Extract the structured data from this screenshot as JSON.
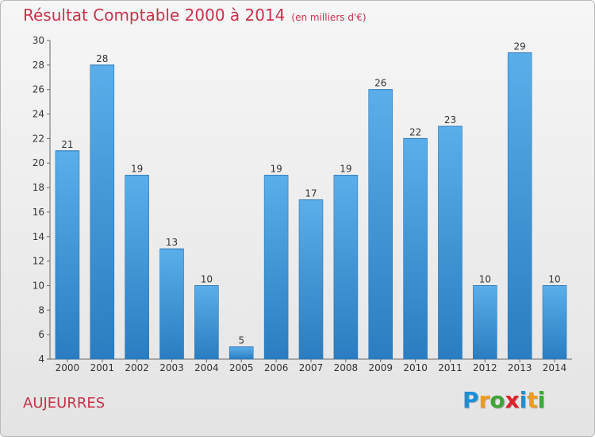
{
  "header": {
    "title": "Résultat Comptable 2000 à 2014",
    "subtitle": "(en milliers d'€)"
  },
  "commune": "AUJEURRES",
  "logo": {
    "text": "Proxiti",
    "letters": [
      "P",
      "r",
      "o",
      "x",
      "i",
      "t",
      "i"
    ]
  },
  "colors": {
    "title": "#c8324a",
    "bar_top": "#5aaeea",
    "bar_bottom": "#2a7dc0",
    "label": "#333333"
  },
  "chart_data": {
    "type": "bar",
    "title": "Résultat Comptable 2000 à 2014 (en milliers d'€)",
    "xlabel": "",
    "ylabel": "",
    "categories": [
      "2000",
      "2001",
      "2002",
      "2003",
      "2004",
      "2005",
      "2006",
      "2007",
      "2008",
      "2009",
      "2010",
      "2011",
      "2012",
      "2013",
      "2014"
    ],
    "values": [
      21,
      28,
      19,
      13,
      10,
      5,
      19,
      17,
      19,
      26,
      22,
      23,
      10,
      29,
      10
    ],
    "ylim": [
      4,
      30
    ],
    "yticks": [
      4,
      6,
      8,
      10,
      12,
      14,
      16,
      18,
      20,
      22,
      24,
      26,
      28,
      30
    ],
    "grid": false,
    "data_labels": true
  }
}
